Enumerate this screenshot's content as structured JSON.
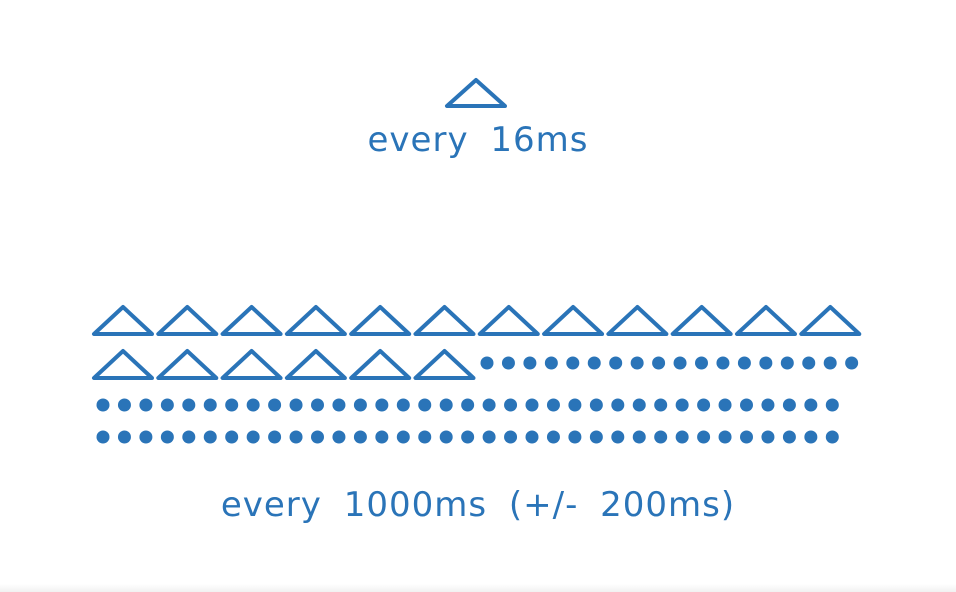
{
  "colors": {
    "accent": "#2a74b8",
    "background": "#ffffff"
  },
  "top_group": {
    "icon": "triangle-outline-icon",
    "triangle_count": 1,
    "caption": "every 16ms"
  },
  "bottom_group": {
    "icon": "triangle-outline-icon",
    "dot_icon": "dot-icon",
    "triangle_count": 18,
    "caption": "every 1000ms (+/- 200ms)"
  }
}
